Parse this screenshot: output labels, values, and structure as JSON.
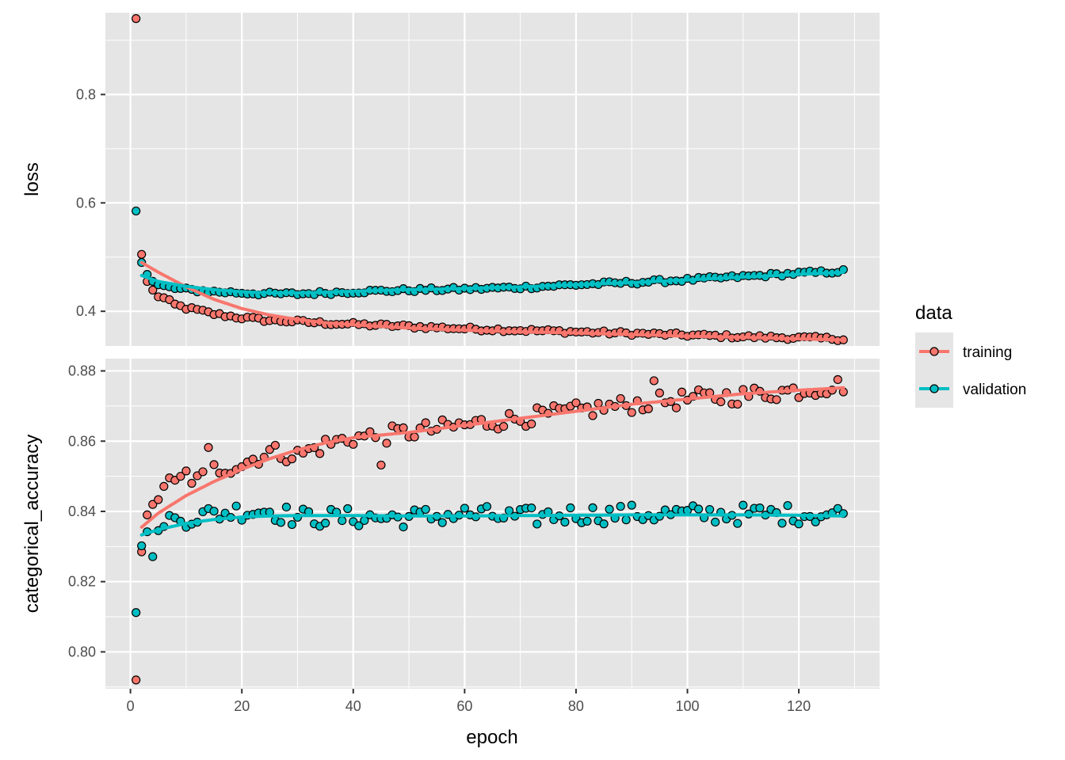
{
  "chart_data": {
    "type": "scatter",
    "x_label": "epoch",
    "x_ticks": [
      0,
      20,
      40,
      60,
      80,
      100,
      120
    ],
    "x_range": [
      -4.5,
      134.5
    ],
    "legend": {
      "title": "data",
      "placement": "right",
      "entries": [
        {
          "label": "training",
          "color": "#F8766D"
        },
        {
          "label": "validation",
          "color": "#00BFC4"
        }
      ]
    },
    "point_style": {
      "outline": "#000000",
      "shape": "circle"
    },
    "smooth_lines": true,
    "colors": {
      "panel_background": "#E5E5E5",
      "gridline": "#FFFFFF",
      "training": "#F8766D",
      "validation": "#00BFC4"
    },
    "panels": [
      {
        "metric": "loss",
        "y_label": "loss",
        "y_range": [
          0.336,
          0.951
        ],
        "y_ticks": [
          0.4,
          0.6,
          0.8
        ],
        "series": [
          {
            "name": "training",
            "epochs": [
              1,
              128
            ],
            "anchors": [
              [
                1,
                0.94
              ],
              [
                2,
                0.505
              ],
              [
                3,
                0.455
              ],
              [
                4,
                0.438
              ],
              [
                5,
                0.428
              ],
              [
                6,
                0.424
              ],
              [
                7,
                0.418
              ],
              [
                8,
                0.412
              ],
              [
                10,
                0.406
              ],
              [
                12,
                0.402
              ],
              [
                15,
                0.395
              ],
              [
                20,
                0.388
              ],
              [
                25,
                0.383
              ],
              [
                30,
                0.381
              ],
              [
                35,
                0.378
              ],
              [
                40,
                0.376
              ],
              [
                50,
                0.372
              ],
              [
                60,
                0.368
              ],
              [
                70,
                0.365
              ],
              [
                80,
                0.362
              ],
              [
                90,
                0.359
              ],
              [
                100,
                0.356
              ],
              [
                110,
                0.353
              ],
              [
                120,
                0.351
              ],
              [
                128,
                0.349
              ]
            ],
            "smooth_anchors": [
              [
                2,
                0.49
              ],
              [
                5,
                0.472
              ],
              [
                10,
                0.445
              ],
              [
                15,
                0.422
              ],
              [
                20,
                0.405
              ],
              [
                25,
                0.393
              ],
              [
                30,
                0.385
              ],
              [
                35,
                0.379
              ],
              [
                40,
                0.375
              ],
              [
                50,
                0.369
              ],
              [
                60,
                0.365
              ],
              [
                70,
                0.362
              ],
              [
                80,
                0.36
              ],
              [
                90,
                0.357
              ],
              [
                100,
                0.354
              ],
              [
                110,
                0.352
              ],
              [
                120,
                0.349
              ],
              [
                128,
                0.347
              ]
            ]
          },
          {
            "name": "validation",
            "epochs": [
              1,
              128
            ],
            "anchors": [
              [
                1,
                0.585
              ],
              [
                2,
                0.49
              ],
              [
                3,
                0.468
              ],
              [
                4,
                0.455
              ],
              [
                5,
                0.448
              ],
              [
                6,
                0.446
              ],
              [
                8,
                0.442
              ],
              [
                10,
                0.44
              ],
              [
                15,
                0.436
              ],
              [
                20,
                0.434
              ],
              [
                25,
                0.432
              ],
              [
                30,
                0.432
              ],
              [
                35,
                0.434
              ],
              [
                40,
                0.436
              ],
              [
                50,
                0.439
              ],
              [
                60,
                0.441
              ],
              [
                70,
                0.444
              ],
              [
                80,
                0.449
              ],
              [
                90,
                0.453
              ],
              [
                100,
                0.458
              ],
              [
                110,
                0.464
              ],
              [
                120,
                0.47
              ],
              [
                128,
                0.474
              ]
            ],
            "smooth_anchors": [
              [
                2,
                0.466
              ],
              [
                5,
                0.455
              ],
              [
                10,
                0.446
              ],
              [
                15,
                0.44
              ],
              [
                20,
                0.436
              ],
              [
                25,
                0.434
              ],
              [
                30,
                0.434
              ],
              [
                35,
                0.435
              ],
              [
                40,
                0.437
              ],
              [
                50,
                0.44
              ],
              [
                60,
                0.442
              ],
              [
                70,
                0.445
              ],
              [
                80,
                0.449
              ],
              [
                90,
                0.453
              ],
              [
                100,
                0.458
              ],
              [
                110,
                0.463
              ],
              [
                120,
                0.468
              ],
              [
                128,
                0.472
              ]
            ]
          }
        ]
      },
      {
        "metric": "categorical_accuracy",
        "y_label": "categorical_accuracy",
        "y_range": [
          0.7895,
          0.8835
        ],
        "y_ticks": [
          0.8,
          0.82,
          0.84,
          0.86,
          0.88
        ],
        "series": [
          {
            "name": "training",
            "epochs": [
              1,
              128
            ],
            "anchors": [
              [
                1,
                0.792
              ],
              [
                2,
                0.8285
              ],
              [
                3,
                0.839
              ],
              [
                4,
                0.8405
              ],
              [
                5,
                0.8445
              ],
              [
                6,
                0.848
              ],
              [
                8,
                0.8475
              ],
              [
                10,
                0.8505
              ],
              [
                12,
                0.8485
              ],
              [
                15,
                0.852
              ],
              [
                20,
                0.8535
              ],
              [
                25,
                0.857
              ],
              [
                30,
                0.856
              ],
              [
                35,
                0.859
              ],
              [
                40,
                0.861
              ],
              [
                45,
                0.8615
              ],
              [
                50,
                0.8625
              ],
              [
                60,
                0.8645
              ],
              [
                70,
                0.8665
              ],
              [
                80,
                0.8685
              ],
              [
                90,
                0.8705
              ],
              [
                100,
                0.872
              ],
              [
                110,
                0.873
              ],
              [
                120,
                0.8745
              ],
              [
                128,
                0.876
              ]
            ],
            "smooth_anchors": [
              [
                2,
                0.8355
              ],
              [
                5,
                0.8395
              ],
              [
                10,
                0.8445
              ],
              [
                15,
                0.8485
              ],
              [
                20,
                0.852
              ],
              [
                25,
                0.855
              ],
              [
                30,
                0.8575
              ],
              [
                35,
                0.8595
              ],
              [
                40,
                0.861
              ],
              [
                50,
                0.8625
              ],
              [
                60,
                0.8645
              ],
              [
                70,
                0.8665
              ],
              [
                80,
                0.8685
              ],
              [
                90,
                0.8705
              ],
              [
                100,
                0.872
              ],
              [
                110,
                0.8735
              ],
              [
                120,
                0.8745
              ],
              [
                128,
                0.8752
              ]
            ],
            "outliers": [
              [
                14,
                0.8582
              ],
              [
                45,
                0.8532
              ],
              [
                94,
                0.8772
              ]
            ]
          },
          {
            "name": "validation",
            "epochs": [
              1,
              128
            ],
            "anchors": [
              [
                1,
                0.8112
              ],
              [
                2,
                0.8302
              ],
              [
                3,
                0.8342
              ],
              [
                4,
                0.8272
              ],
              [
                5,
                0.8322
              ],
              [
                6,
                0.8382
              ],
              [
                8,
                0.8372
              ],
              [
                10,
                0.8382
              ],
              [
                15,
                0.8392
              ],
              [
                20,
                0.8402
              ],
              [
                25,
                0.8402
              ],
              [
                30,
                0.8382
              ],
              [
                40,
                0.8382
              ],
              [
                50,
                0.8382
              ],
              [
                60,
                0.8392
              ],
              [
                70,
                0.8382
              ],
              [
                80,
                0.8392
              ],
              [
                90,
                0.8392
              ],
              [
                100,
                0.8392
              ],
              [
                110,
                0.8392
              ],
              [
                120,
                0.8392
              ],
              [
                128,
                0.8392
              ]
            ],
            "smooth_anchors": [
              [
                2,
                0.8333
              ],
              [
                5,
                0.8348
              ],
              [
                10,
                0.8366
              ],
              [
                15,
                0.8377
              ],
              [
                20,
                0.8384
              ],
              [
                25,
                0.8387
              ],
              [
                30,
                0.8388
              ],
              [
                40,
                0.8388
              ],
              [
                50,
                0.8387
              ],
              [
                60,
                0.8387
              ],
              [
                70,
                0.8388
              ],
              [
                80,
                0.8389
              ],
              [
                90,
                0.839
              ],
              [
                100,
                0.839
              ],
              [
                110,
                0.839
              ],
              [
                120,
                0.8389
              ],
              [
                128,
                0.8387
              ]
            ],
            "noise": 0.0028
          }
        ]
      }
    ]
  }
}
